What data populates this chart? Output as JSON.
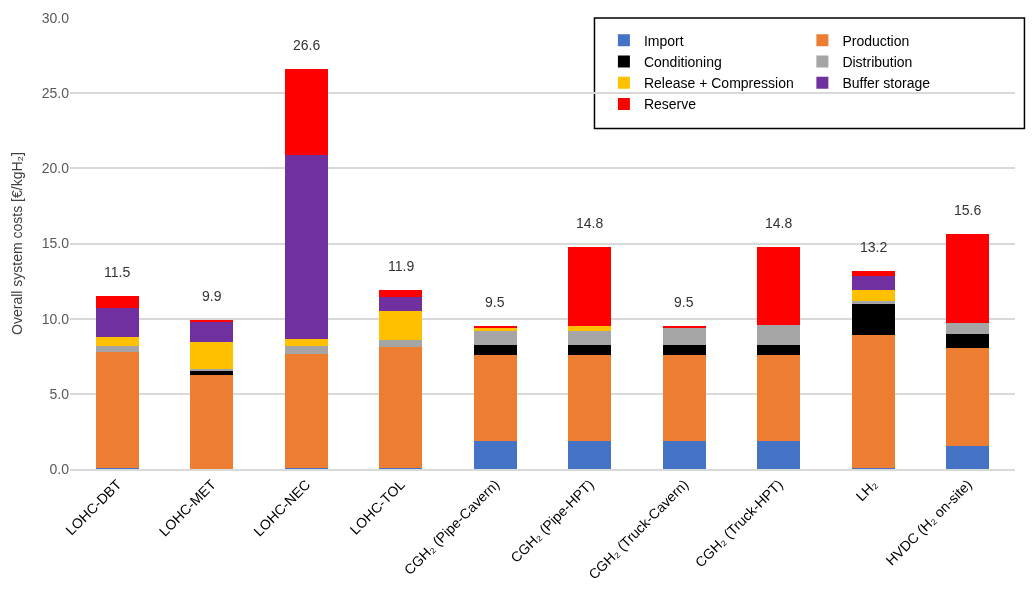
{
  "chart_data": {
    "type": "bar",
    "stacked": true,
    "ylabel": "Overall system costs [€/kgH₂]",
    "categories": [
      "LOHC-DBT",
      "LOHC-MET",
      "LOHC-NEC",
      "LOHC-TOL",
      "CGH₂ (Pipe-Cavern)",
      "CGH₂ (Pipe-HPT)",
      "CGH₂ (Truck-Cavern)",
      "CGH₂ (Truck-HPT)",
      "LH₂",
      "HVDC (H₂ on-site)"
    ],
    "series": [
      {
        "name": "Import",
        "color": "#4472c4",
        "values": [
          0.05,
          0,
          0.05,
          0.05,
          1.85,
          1.85,
          1.85,
          1.85,
          0.1,
          1.5
        ]
      },
      {
        "name": "Production",
        "color": "#ed7d31",
        "values": [
          7.75,
          6.25,
          7.6,
          8.05,
          5.75,
          5.75,
          5.75,
          5.75,
          8.8,
          6.55
        ]
      },
      {
        "name": "Conditioning",
        "color": "#000000",
        "values": [
          0,
          0.3,
          0,
          0,
          0.65,
          0.65,
          0.65,
          0.65,
          2.05,
          0.9
        ]
      },
      {
        "name": "Distribution",
        "color": "#a5a5a5",
        "values": [
          0.4,
          0.1,
          0.5,
          0.45,
          0.95,
          0.95,
          1.15,
          1.3,
          0.25,
          0.75
        ]
      },
      {
        "name": "Release + Compression",
        "color": "#ffc000",
        "values": [
          0.55,
          1.8,
          0.5,
          1.95,
          0.2,
          0.3,
          0,
          0,
          0.7,
          0
        ]
      },
      {
        "name": "Buffer storage",
        "color": "#7030a0",
        "values": [
          1.95,
          1.3,
          12.25,
          0.95,
          0,
          0,
          0,
          0,
          0.95,
          0
        ]
      },
      {
        "name": "Reserve",
        "color": "#ff0000",
        "values": [
          0.8,
          0.15,
          5.7,
          0.45,
          0.1,
          5.3,
          0.1,
          5.2,
          0.35,
          5.9
        ]
      }
    ],
    "totals": [
      "11.5",
      "9.9",
      "26.6",
      "11.9",
      "9.5",
      "14.8",
      "9.5",
      "14.8",
      "13.2",
      "15.6"
    ],
    "ylim": [
      0,
      30
    ],
    "yticks": [
      {
        "value": 0,
        "label": "0.0"
      },
      {
        "value": 5,
        "label": "5.0"
      },
      {
        "value": 10,
        "label": "10.0"
      },
      {
        "value": 15,
        "label": "15.0"
      },
      {
        "value": 20,
        "label": "20.0"
      },
      {
        "value": 25,
        "label": "25.0"
      },
      {
        "value": 30,
        "label": "30.0"
      }
    ],
    "grid": "y",
    "legend": "top right"
  }
}
